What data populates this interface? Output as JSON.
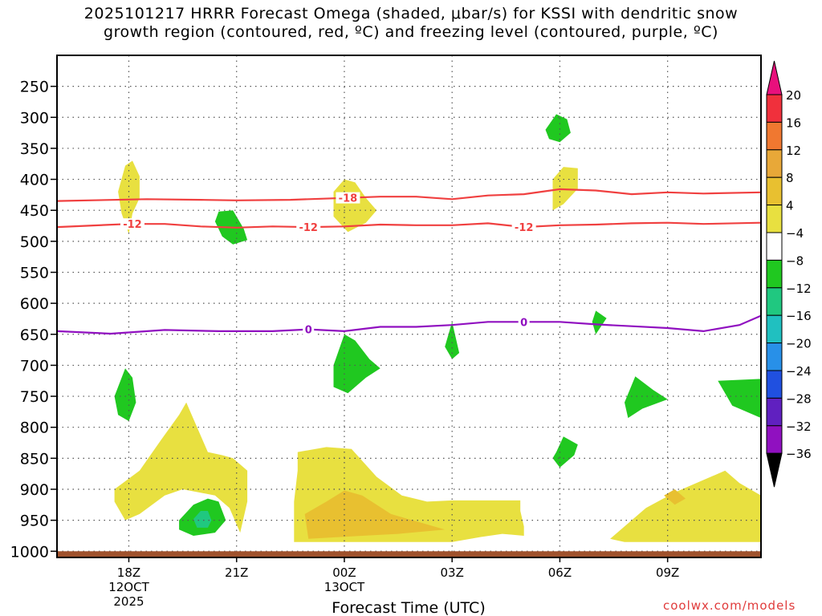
{
  "chart_data": {
    "type": "heatmap",
    "title_line1": "2025101217 HRRR Forecast Omega (shaded, μbar/s) for KSSI with dendritic snow",
    "title_line2": "growth region (contoured, red, ºC) and freezing level (contoured, purple, ºC)",
    "xlabel": "Forecast Time (UTC)",
    "xlim": [
      16.0,
      35.6
    ],
    "ylim": [
      1010,
      200
    ],
    "x_ticks": [
      {
        "x": 18,
        "label": "18Z",
        "sub1": "12OCT",
        "sub2": "2025"
      },
      {
        "x": 21,
        "label": "21Z",
        "sub1": "",
        "sub2": ""
      },
      {
        "x": 24,
        "label": "00Z",
        "sub1": "13OCT",
        "sub2": ""
      },
      {
        "x": 27,
        "label": "03Z",
        "sub1": "",
        "sub2": ""
      },
      {
        "x": 30,
        "label": "06Z",
        "sub1": "",
        "sub2": ""
      },
      {
        "x": 33,
        "label": "09Z",
        "sub1": "",
        "sub2": ""
      }
    ],
    "y_ticks": [
      250,
      300,
      350,
      400,
      450,
      500,
      550,
      600,
      650,
      700,
      750,
      800,
      850,
      900,
      950,
      1000
    ],
    "ground_level_hpa": 1000,
    "colorbar": {
      "labels": [
        "20",
        "16",
        "12",
        "8",
        "4",
        "−4",
        "−8",
        "−12",
        "−16",
        "−20",
        "−24",
        "−28",
        "−32",
        "−36"
      ],
      "colors": [
        "#f0303c",
        "#f07830",
        "#e8a838",
        "#e8c030",
        "#e8e040",
        "#ffffff",
        "#20c820",
        "#20c880",
        "#20c0c0",
        "#2890e8",
        "#2050e0",
        "#6020c0",
        "#9010c0",
        "#a0a0a0"
      ],
      "top_arrow_color": "#e8107c",
      "bottom_arrow_color": "#000000"
    },
    "contours": [
      {
        "name": "-18C",
        "label": "-18",
        "color": "#f04040",
        "points": [
          [
            16.0,
            435
          ],
          [
            18.5,
            432
          ],
          [
            20.0,
            433
          ],
          [
            21.0,
            434
          ],
          [
            22.5,
            433
          ],
          [
            24.0,
            430
          ],
          [
            25.0,
            428
          ],
          [
            26.0,
            428
          ],
          [
            27.0,
            432
          ],
          [
            28.0,
            426
          ],
          [
            29.0,
            424
          ],
          [
            30.0,
            416
          ],
          [
            31.0,
            418
          ],
          [
            32.0,
            424
          ],
          [
            33.0,
            421
          ],
          [
            34.0,
            423
          ],
          [
            35.6,
            421
          ]
        ],
        "label_x": 24.1
      },
      {
        "name": "-12C",
        "label": "-12",
        "color": "#f04040",
        "points": [
          [
            16.0,
            477
          ],
          [
            18.0,
            472
          ],
          [
            19.0,
            472
          ],
          [
            20.0,
            476
          ],
          [
            21.0,
            478
          ],
          [
            22.0,
            476
          ],
          [
            23.0,
            477
          ],
          [
            24.0,
            476
          ],
          [
            25.0,
            473
          ],
          [
            26.0,
            474
          ],
          [
            27.0,
            474
          ],
          [
            28.0,
            471
          ],
          [
            29.0,
            477
          ],
          [
            30.0,
            474
          ],
          [
            31.0,
            473
          ],
          [
            32.0,
            471
          ],
          [
            33.0,
            470
          ],
          [
            34.0,
            472
          ],
          [
            35.6,
            470
          ]
        ],
        "labels_x": [
          18.1,
          23.0,
          29.0
        ]
      },
      {
        "name": "0C",
        "label": "0",
        "color": "#9010c0",
        "points": [
          [
            16.0,
            645
          ],
          [
            17.5,
            649
          ],
          [
            19.0,
            643
          ],
          [
            20.5,
            645
          ],
          [
            22.0,
            645
          ],
          [
            23.0,
            642
          ],
          [
            24.0,
            645
          ],
          [
            25.0,
            638
          ],
          [
            26.0,
            638
          ],
          [
            27.0,
            635
          ],
          [
            28.0,
            630
          ],
          [
            29.0,
            630
          ],
          [
            30.0,
            630
          ],
          [
            31.0,
            634
          ],
          [
            32.0,
            637
          ],
          [
            33.0,
            640
          ],
          [
            34.0,
            645
          ],
          [
            35.0,
            635
          ],
          [
            35.6,
            620
          ]
        ],
        "labels_x": [
          23.0,
          29.0
        ]
      }
    ],
    "shaded_regions": [
      {
        "value": 5,
        "polygon": [
          [
            17.7,
            420
          ],
          [
            17.9,
            378
          ],
          [
            18.1,
            370
          ],
          [
            18.3,
            395
          ],
          [
            18.3,
            430
          ],
          [
            18.1,
            455
          ],
          [
            18.0,
            488
          ],
          [
            17.8,
            455
          ]
        ]
      },
      {
        "value": 5,
        "polygon": [
          [
            23.7,
            420
          ],
          [
            24.0,
            400
          ],
          [
            24.3,
            405
          ],
          [
            24.6,
            430
          ],
          [
            24.9,
            450
          ],
          [
            24.6,
            470
          ],
          [
            24.1,
            485
          ],
          [
            23.7,
            460
          ]
        ]
      },
      {
        "value": 5,
        "polygon": [
          [
            29.8,
            400
          ],
          [
            30.1,
            380
          ],
          [
            30.5,
            382
          ],
          [
            30.5,
            415
          ],
          [
            30.1,
            440
          ],
          [
            29.8,
            450
          ]
        ]
      },
      {
        "value": 5,
        "polygon": [
          [
            17.6,
            900
          ],
          [
            18.3,
            870
          ],
          [
            18.9,
            820
          ],
          [
            19.4,
            780
          ],
          [
            19.6,
            760
          ],
          [
            19.9,
            800
          ],
          [
            20.2,
            840
          ],
          [
            20.6,
            845
          ],
          [
            20.9,
            850
          ],
          [
            21.3,
            870
          ],
          [
            21.3,
            920
          ],
          [
            21.1,
            970
          ],
          [
            20.8,
            930
          ],
          [
            20.4,
            910
          ],
          [
            19.5,
            900
          ],
          [
            19.0,
            910
          ],
          [
            18.3,
            940
          ],
          [
            17.9,
            950
          ],
          [
            17.6,
            920
          ]
        ]
      },
      {
        "value": 5,
        "polygon": [
          [
            22.7,
            840
          ],
          [
            23.5,
            832
          ],
          [
            24.2,
            835
          ],
          [
            24.9,
            880
          ],
          [
            25.6,
            910
          ],
          [
            26.3,
            920
          ],
          [
            27.0,
            918
          ],
          [
            27.6,
            918
          ],
          [
            28.9,
            918
          ],
          [
            28.9,
            935
          ],
          [
            29.0,
            960
          ],
          [
            29.0,
            975
          ],
          [
            28.4,
            972
          ],
          [
            27.8,
            977
          ],
          [
            27.0,
            985
          ],
          [
            25.5,
            985
          ],
          [
            24.0,
            985
          ],
          [
            22.6,
            985
          ],
          [
            22.6,
            920
          ],
          [
            22.7,
            870
          ]
        ]
      },
      {
        "value": 9,
        "polygon": [
          [
            22.9,
            940
          ],
          [
            23.5,
            920
          ],
          [
            24.0,
            902
          ],
          [
            24.5,
            910
          ],
          [
            25.3,
            940
          ],
          [
            26.8,
            965
          ],
          [
            25.5,
            972
          ],
          [
            24.5,
            975
          ],
          [
            23.0,
            980
          ]
        ]
      },
      {
        "value": 5,
        "polygon": [
          [
            31.4,
            980
          ],
          [
            32.4,
            930
          ],
          [
            33.2,
            905
          ],
          [
            34.0,
            885
          ],
          [
            34.6,
            870
          ],
          [
            35.0,
            890
          ],
          [
            35.6,
            910
          ],
          [
            35.6,
            985
          ],
          [
            34.0,
            985
          ],
          [
            31.8,
            985
          ]
        ]
      },
      {
        "value": 9,
        "polygon": [
          [
            32.9,
            910
          ],
          [
            33.2,
            900
          ],
          [
            33.5,
            915
          ],
          [
            33.2,
            925
          ]
        ]
      },
      {
        "value": -6,
        "polygon": [
          [
            29.6,
            320
          ],
          [
            29.9,
            295
          ],
          [
            30.2,
            303
          ],
          [
            30.3,
            325
          ],
          [
            30.0,
            340
          ],
          [
            29.7,
            335
          ]
        ]
      },
      {
        "value": -6,
        "polygon": [
          [
            20.5,
            452
          ],
          [
            20.9,
            450
          ],
          [
            21.2,
            480
          ],
          [
            21.3,
            498
          ],
          [
            20.9,
            505
          ],
          [
            20.6,
            492
          ],
          [
            20.4,
            468
          ]
        ]
      },
      {
        "value": -6,
        "polygon": [
          [
            17.6,
            750
          ],
          [
            17.9,
            705
          ],
          [
            18.1,
            720
          ],
          [
            18.2,
            760
          ],
          [
            18.0,
            790
          ],
          [
            17.7,
            780
          ]
        ]
      },
      {
        "value": -6,
        "polygon": [
          [
            23.7,
            700
          ],
          [
            24.0,
            650
          ],
          [
            24.3,
            660
          ],
          [
            24.7,
            690
          ],
          [
            25.0,
            705
          ],
          [
            24.6,
            720
          ],
          [
            24.1,
            745
          ],
          [
            23.7,
            735
          ]
        ]
      },
      {
        "value": -6,
        "polygon": [
          [
            26.8,
            670
          ],
          [
            27.0,
            630
          ],
          [
            27.2,
            680
          ],
          [
            27.0,
            690
          ]
        ]
      },
      {
        "value": -6,
        "polygon": [
          [
            30.9,
            630
          ],
          [
            31.0,
            612
          ],
          [
            31.3,
            624
          ],
          [
            31.0,
            650
          ]
        ]
      },
      {
        "value": -6,
        "polygon": [
          [
            31.8,
            760
          ],
          [
            32.1,
            718
          ],
          [
            32.6,
            740
          ],
          [
            33.0,
            755
          ],
          [
            32.3,
            770
          ],
          [
            31.9,
            785
          ]
        ]
      },
      {
        "value": -6,
        "polygon": [
          [
            34.4,
            725
          ],
          [
            35.6,
            722
          ],
          [
            35.6,
            785
          ],
          [
            34.8,
            765
          ]
        ]
      },
      {
        "value": -6,
        "polygon": [
          [
            29.9,
            840
          ],
          [
            30.1,
            815
          ],
          [
            30.5,
            828
          ],
          [
            30.4,
            845
          ],
          [
            30.0,
            865
          ],
          [
            29.8,
            850
          ]
        ]
      },
      {
        "value": -6,
        "polygon": [
          [
            19.4,
            950
          ],
          [
            19.8,
            925
          ],
          [
            20.2,
            915
          ],
          [
            20.5,
            920
          ],
          [
            20.7,
            950
          ],
          [
            20.4,
            970
          ],
          [
            19.8,
            975
          ],
          [
            19.4,
            965
          ]
        ]
      },
      {
        "value": -10,
        "polygon": [
          [
            19.8,
            948
          ],
          [
            20.0,
            935
          ],
          [
            20.2,
            935
          ],
          [
            20.3,
            950
          ],
          [
            20.2,
            962
          ],
          [
            19.9,
            962
          ]
        ]
      }
    ]
  },
  "watermark": "coolwx.com/models"
}
